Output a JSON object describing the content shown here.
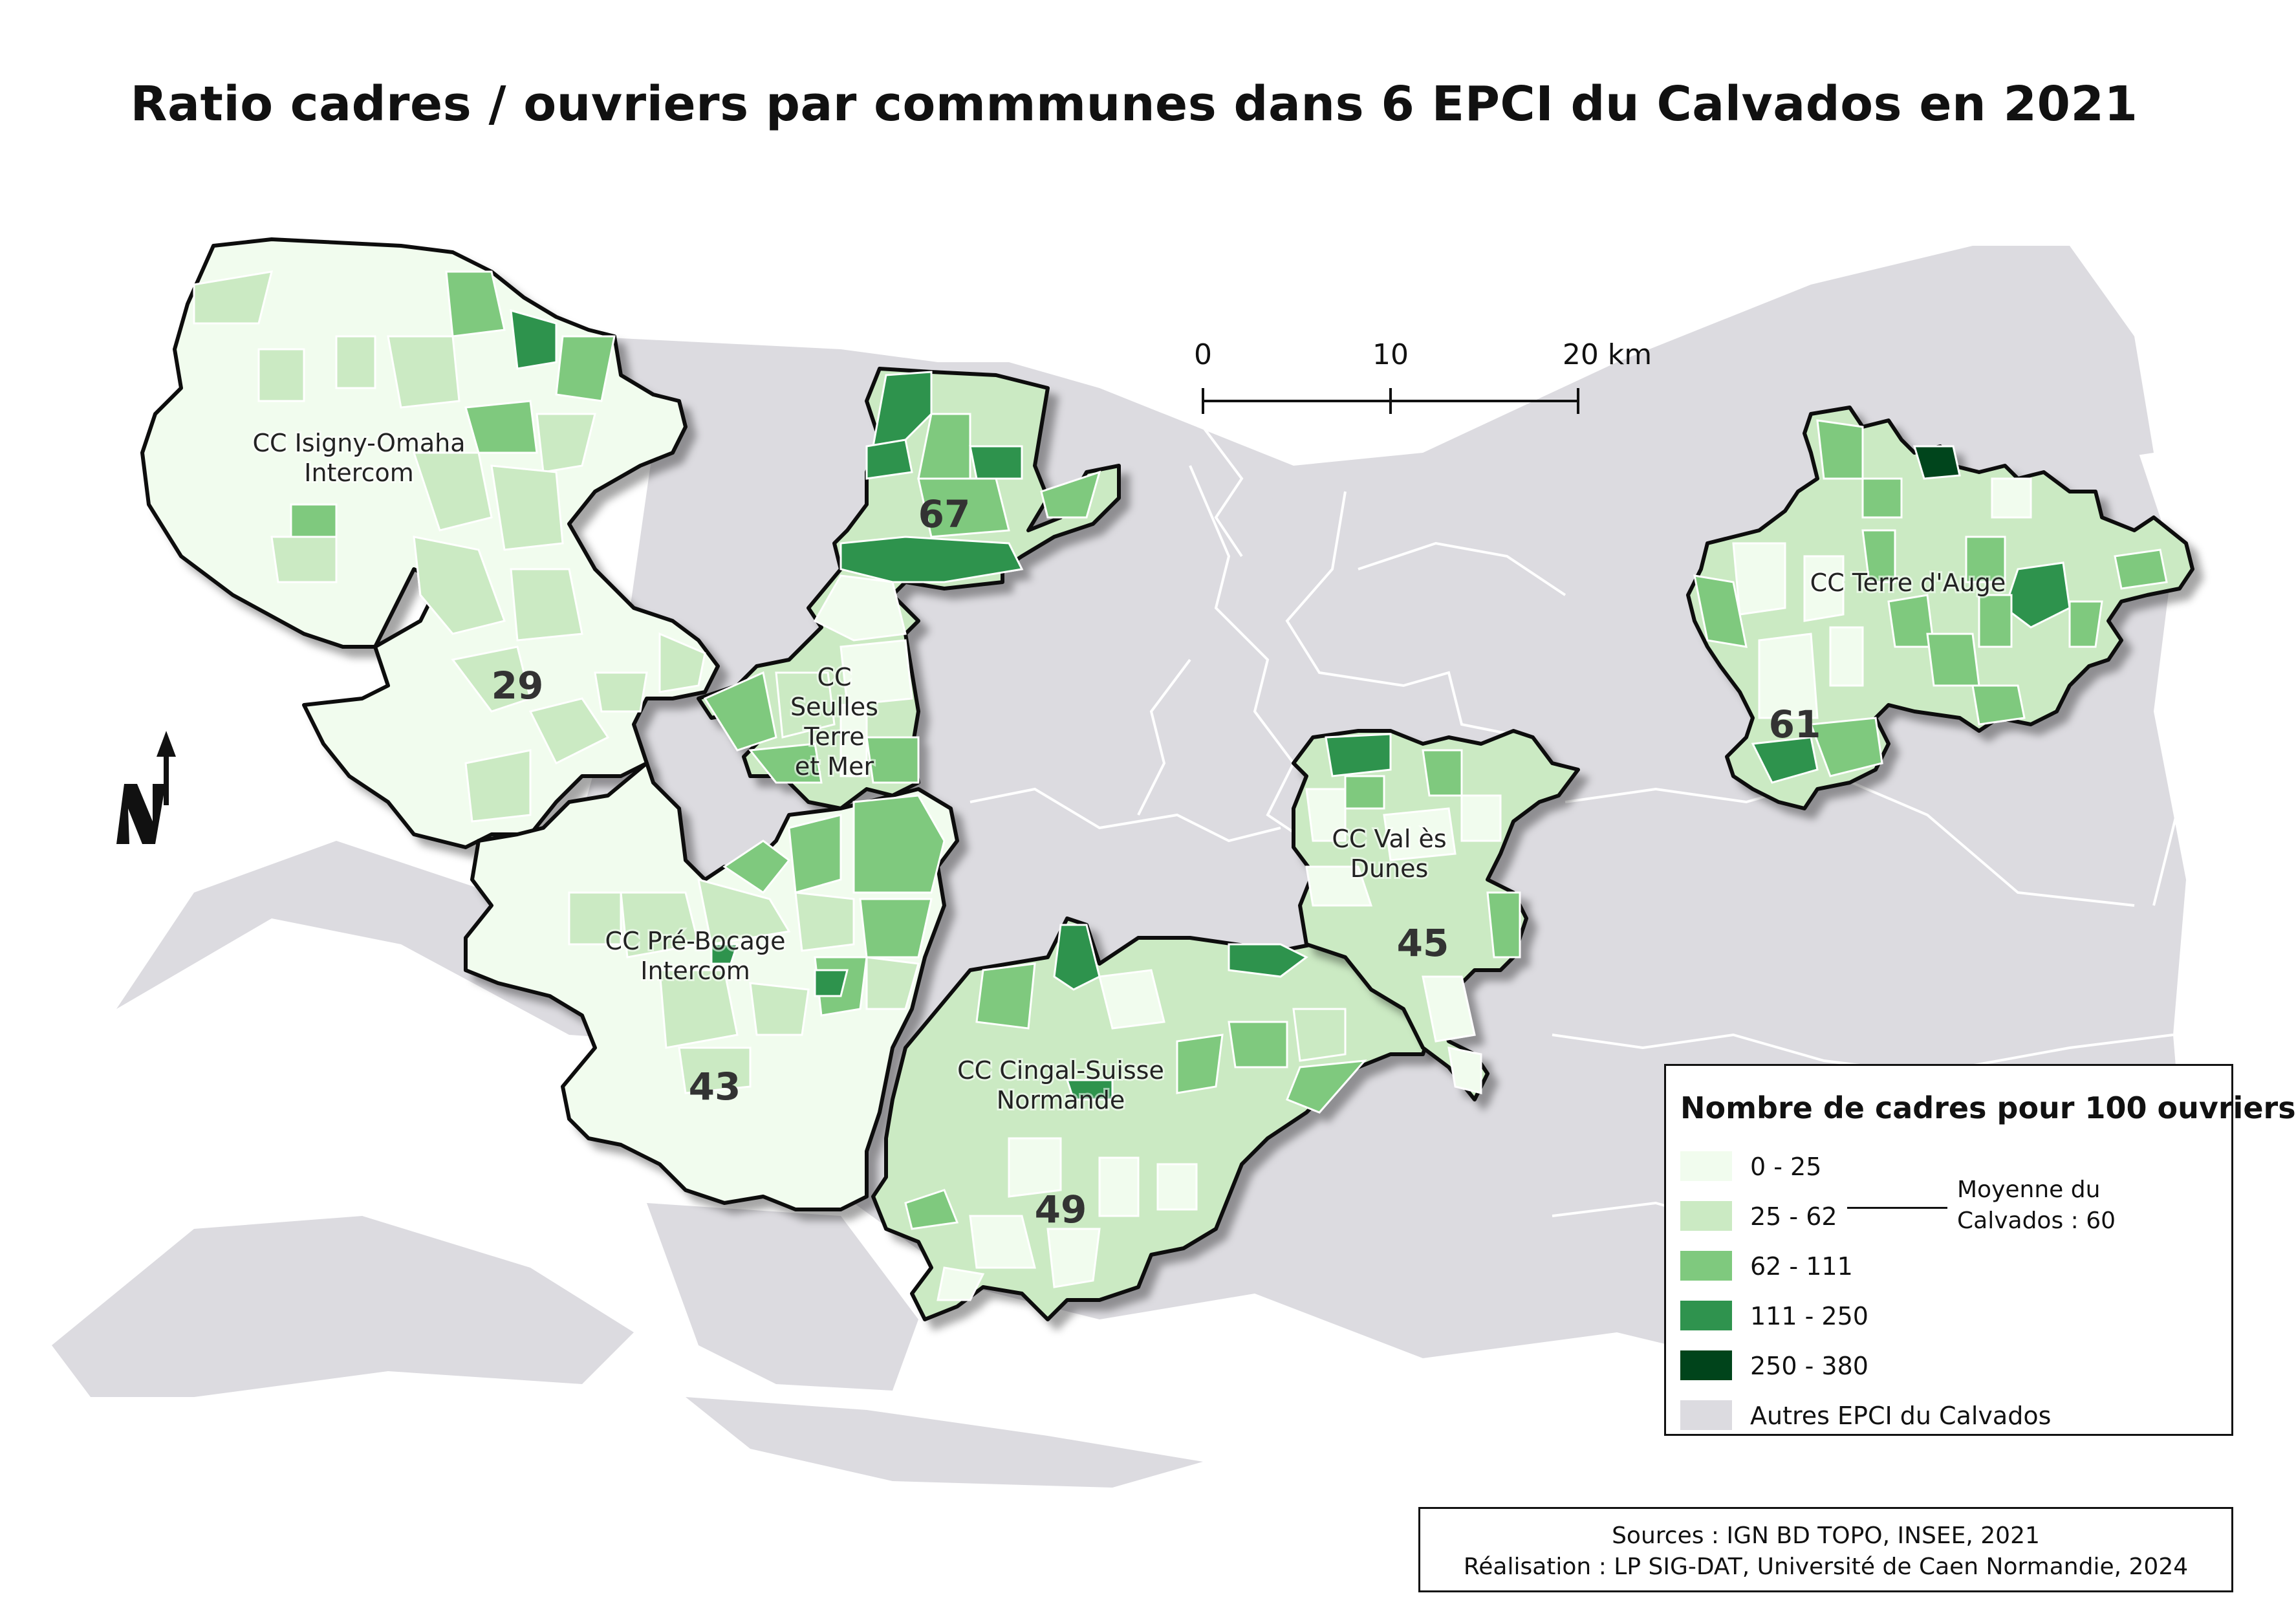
{
  "title": "Ratio cadres / ouvriers  par commmunes dans 6 EPCI du Calvados en 2021",
  "colors": {
    "class_0_25": "#f1fcee",
    "class_25_62": "#cbeac3",
    "class_62_111": "#7fc97e",
    "class_111_250": "#2f934e",
    "class_250_380": "#00441b",
    "other_epci": "#dcdbe0",
    "outline": "#111111"
  },
  "epci": [
    {
      "name": "CC Isigny-Omaha Intercom",
      "name_line1": "CC Isigny-Omaha",
      "name_line2": "Intercom",
      "count": "29"
    },
    {
      "name": "CC Seulles Terre et Mer",
      "name_line1": "CC",
      "name_line2": "Seulles",
      "name_line3": "Terre",
      "name_line4": "et Mer",
      "count": "67"
    },
    {
      "name": "CC Pré-Bocage Intercom",
      "name_line1": "CC Pré-Bocage",
      "name_line2": "Intercom",
      "count": "43"
    },
    {
      "name": "CC Cingal-Suisse Normande",
      "name_line1": "CC Cingal-Suisse",
      "name_line2": "Normande",
      "count": "49"
    },
    {
      "name": "CC Val ès Dunes",
      "name_line1": "CC Val ès",
      "name_line2": "Dunes",
      "count": "45"
    },
    {
      "name": "CC Terre d'Auge",
      "name_line1": "CC Terre d'Auge",
      "count": "61"
    }
  ],
  "scale_bar": {
    "labels": [
      "0",
      "10",
      "20 km"
    ]
  },
  "north_arrow": {
    "label": "N",
    "icon": "north-arrow-icon"
  },
  "legend": {
    "title": "Nombre de cadres pour 100 ouvriers",
    "classes": [
      {
        "label": "0 - 25",
        "color": "#f1fcee"
      },
      {
        "label": "25 - 62",
        "color": "#cbeac3"
      },
      {
        "label": "62 - 111",
        "color": "#7fc97e"
      },
      {
        "label": "111 - 250",
        "color": "#2f934e"
      },
      {
        "label": "250 - 380",
        "color": "#00441b"
      }
    ],
    "other": {
      "label": "Autres EPCI du Calvados",
      "color": "#dcdbe0"
    },
    "mean_line1": "Moyenne du",
    "mean_line2": "Calvados : 60"
  },
  "sources": {
    "line1": "Sources : IGN BD TOPO, INSEE, 2021",
    "line2": "Réalisation : LP SIG-DAT, Université de Caen Normandie, 2024"
  }
}
